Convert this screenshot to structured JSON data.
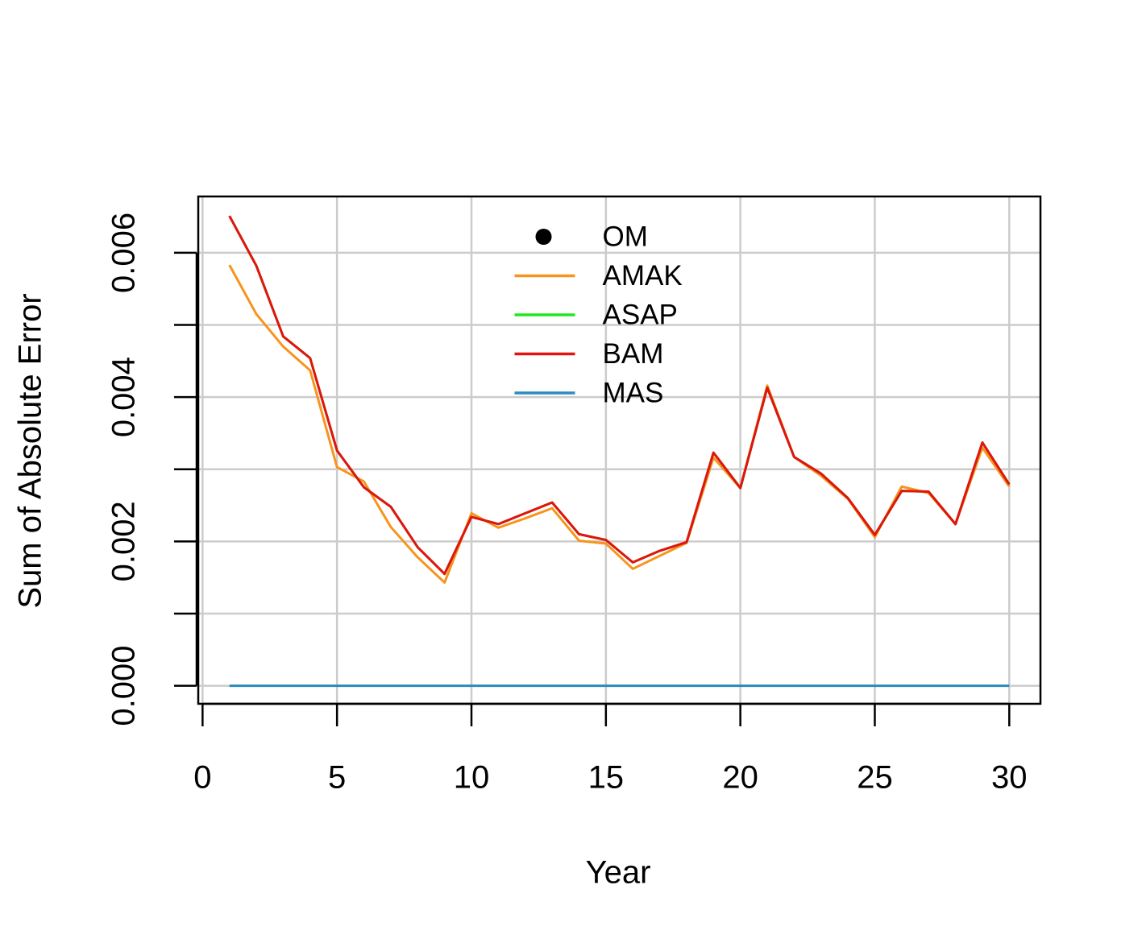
{
  "chart_data": {
    "type": "line",
    "xlabel": "Year",
    "ylabel": "Sum of Absolute Error",
    "x": [
      1,
      2,
      3,
      4,
      5,
      6,
      7,
      8,
      9,
      10,
      11,
      12,
      13,
      14,
      15,
      16,
      17,
      18,
      19,
      20,
      21,
      22,
      23,
      24,
      25,
      26,
      27,
      28,
      29,
      30
    ],
    "series": [
      {
        "name": "OM",
        "color": "#000000",
        "style": "point",
        "values": [
          null,
          null,
          null,
          null,
          null,
          null,
          null,
          null,
          null,
          null,
          null,
          null,
          null,
          null,
          null,
          null,
          null,
          null,
          null,
          null,
          null,
          null,
          null,
          null,
          null,
          null,
          null,
          null,
          null,
          null
        ]
      },
      {
        "name": "AMAK",
        "color": "#f7941d",
        "style": "line",
        "values": [
          0.00583,
          0.00515,
          0.0047,
          0.00437,
          0.00303,
          0.00283,
          0.0022,
          0.00178,
          0.00143,
          0.00239,
          0.00219,
          0.00232,
          0.00246,
          0.00201,
          0.00197,
          0.00162,
          0.0018,
          0.00198,
          0.00316,
          0.00274,
          0.00416,
          0.00317,
          0.00291,
          0.00259,
          0.00206,
          0.00276,
          0.00267,
          0.00224,
          0.0033,
          0.00276
        ]
      },
      {
        "name": "ASAP",
        "color": "#1ee81e",
        "style": "line",
        "values": [
          0.00651,
          0.00582,
          0.00484,
          0.00454,
          0.00326,
          0.00275,
          0.00248,
          0.00192,
          0.00155,
          0.00234,
          0.00224,
          0.00239,
          0.00254,
          0.0021,
          0.00202,
          0.00171,
          0.00187,
          0.00199,
          0.00323,
          0.00274,
          0.00413,
          0.00317,
          0.00294,
          0.0026,
          0.00209,
          0.0027,
          0.00269,
          0.00224,
          0.00337,
          0.00279
        ]
      },
      {
        "name": "BAM",
        "color": "#e3130f",
        "style": "line",
        "values": [
          0.00651,
          0.00582,
          0.00484,
          0.00454,
          0.00326,
          0.00275,
          0.00248,
          0.00192,
          0.00155,
          0.00234,
          0.00224,
          0.00239,
          0.00254,
          0.0021,
          0.00202,
          0.00171,
          0.00187,
          0.00199,
          0.00323,
          0.00274,
          0.00413,
          0.00317,
          0.00294,
          0.0026,
          0.00209,
          0.0027,
          0.00269,
          0.00224,
          0.00337,
          0.00279
        ]
      },
      {
        "name": "MAS",
        "color": "#2b8cbe",
        "style": "line",
        "values": [
          0,
          0,
          0,
          0,
          0,
          0,
          0,
          0,
          0,
          0,
          0,
          0,
          0,
          0,
          0,
          0,
          0,
          0,
          0,
          0,
          0,
          0,
          0,
          0,
          0,
          0,
          0,
          0,
          0,
          0
        ]
      }
    ],
    "xlim": [
      -0.16,
      31.16
    ],
    "xticks": [
      0,
      5,
      10,
      15,
      20,
      25,
      30
    ],
    "ylim": [
      -0.00025,
      0.00678
    ],
    "yticks": [
      {
        "value": 0,
        "label": "0.000"
      },
      0.002,
      0.004,
      0.006
    ],
    "yminor_ticks": [
      0.001,
      0.003,
      0.005
    ],
    "grid": true,
    "legend": "top"
  }
}
